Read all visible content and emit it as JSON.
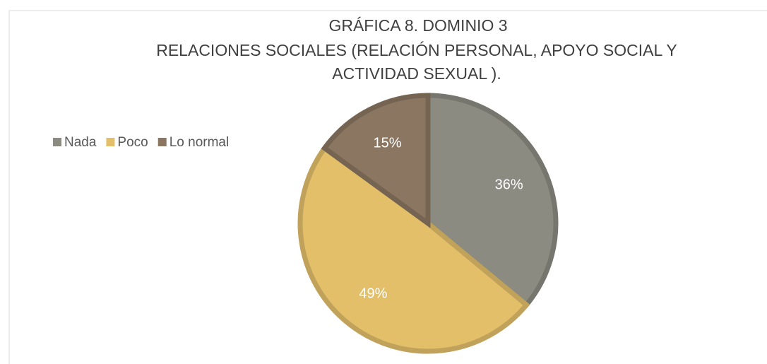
{
  "chart_data": {
    "type": "pie",
    "title": [
      "GRÁFICA 8. DOMINIO  3",
      "RELACIONES SOCIALES  (RELACIÓN PERSONAL, APOYO SOCIAL Y",
      "ACTIVIDAD SEXUAL )."
    ],
    "categories": [
      "Nada",
      "Poco",
      "Lo normal"
    ],
    "values": [
      36,
      49,
      15
    ],
    "value_labels": [
      "36%",
      "49%",
      "15%"
    ],
    "colors": [
      "#8b8b81",
      "#e3bf6a",
      "#8b7661"
    ],
    "legend": "left"
  }
}
